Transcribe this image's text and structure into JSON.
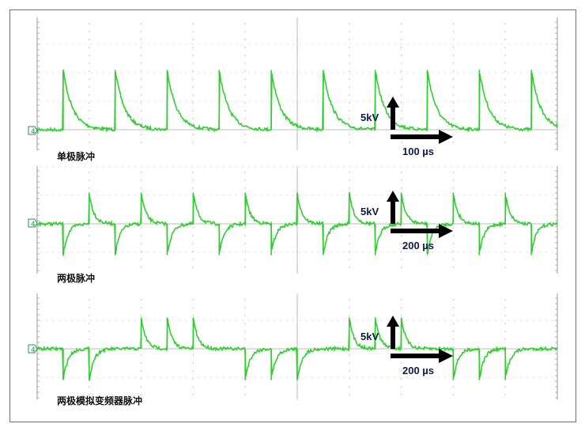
{
  "colors": {
    "trace": "#33cc33",
    "grid": "#bdbdbd",
    "frame": "#6f6f6f",
    "arrow": "#000000",
    "scale_text": "#0d1a4a",
    "marker": "#2e8b57"
  },
  "icons": {
    "arrow_up": "up-arrow-icon",
    "arrow_right": "right-arrow-icon",
    "ground_marker": "channel-4-marker-icon"
  },
  "chart_data": [
    {
      "type": "line",
      "title": "单极脉冲",
      "channel_marker": "4",
      "voltage_scale": "5kV",
      "time_scale": "100 µs",
      "grid": true,
      "pulses": [
        {
          "t": 0.5,
          "polarity": 1
        },
        {
          "t": 1.5,
          "polarity": 1
        },
        {
          "t": 2.5,
          "polarity": 1
        },
        {
          "t": 3.5,
          "polarity": 1
        },
        {
          "t": 4.5,
          "polarity": 1
        },
        {
          "t": 5.5,
          "polarity": 1
        },
        {
          "t": 6.5,
          "polarity": 1
        },
        {
          "t": 7.5,
          "polarity": 1
        },
        {
          "t": 8.5,
          "polarity": 1
        },
        {
          "t": 9.5,
          "polarity": 1
        }
      ],
      "peak_divisions": 2.1,
      "decay_divisions": 0.18,
      "xlim_divisions": [
        0,
        10
      ]
    },
    {
      "type": "line",
      "title": "两极脉冲",
      "channel_marker": "4",
      "voltage_scale": "5kV",
      "time_scale": "200 µs",
      "grid": true,
      "pulses": [
        {
          "t": 0.5,
          "polarity": -1
        },
        {
          "t": 1.0,
          "polarity": 1
        },
        {
          "t": 1.5,
          "polarity": -1
        },
        {
          "t": 2.0,
          "polarity": 1
        },
        {
          "t": 2.5,
          "polarity": -1
        },
        {
          "t": 3.0,
          "polarity": 1
        },
        {
          "t": 3.5,
          "polarity": -1
        },
        {
          "t": 4.0,
          "polarity": 1
        },
        {
          "t": 4.5,
          "polarity": -1
        },
        {
          "t": 5.0,
          "polarity": 1
        },
        {
          "t": 5.5,
          "polarity": -1
        },
        {
          "t": 6.0,
          "polarity": 1
        },
        {
          "t": 6.5,
          "polarity": -1
        },
        {
          "t": 7.0,
          "polarity": 1
        },
        {
          "t": 7.5,
          "polarity": -1
        },
        {
          "t": 8.0,
          "polarity": 1
        },
        {
          "t": 8.5,
          "polarity": -1
        },
        {
          "t": 9.0,
          "polarity": 1
        },
        {
          "t": 9.5,
          "polarity": -1
        }
      ],
      "peak_divisions": 1.1,
      "decay_divisions": 0.09,
      "xlim_divisions": [
        0,
        10
      ]
    },
    {
      "type": "line",
      "title": "两极模拟变频器脉冲",
      "channel_marker": "4",
      "voltage_scale": "5kV",
      "time_scale": "200 µs",
      "grid": true,
      "pulses": [
        {
          "t": 0.5,
          "polarity": -1
        },
        {
          "t": 1.0,
          "polarity": -1
        },
        {
          "t": 2.0,
          "polarity": 1
        },
        {
          "t": 2.5,
          "polarity": 1
        },
        {
          "t": 3.0,
          "polarity": 1
        },
        {
          "t": 4.0,
          "polarity": -1
        },
        {
          "t": 4.5,
          "polarity": -1
        },
        {
          "t": 5.0,
          "polarity": -1
        },
        {
          "t": 6.0,
          "polarity": 1
        },
        {
          "t": 6.5,
          "polarity": 1
        },
        {
          "t": 7.0,
          "polarity": 1
        },
        {
          "t": 8.0,
          "polarity": -1
        },
        {
          "t": 8.5,
          "polarity": -1
        },
        {
          "t": 9.0,
          "polarity": -1
        }
      ],
      "peak_divisions": 1.1,
      "decay_divisions": 0.09,
      "xlim_divisions": [
        0,
        10
      ]
    }
  ]
}
